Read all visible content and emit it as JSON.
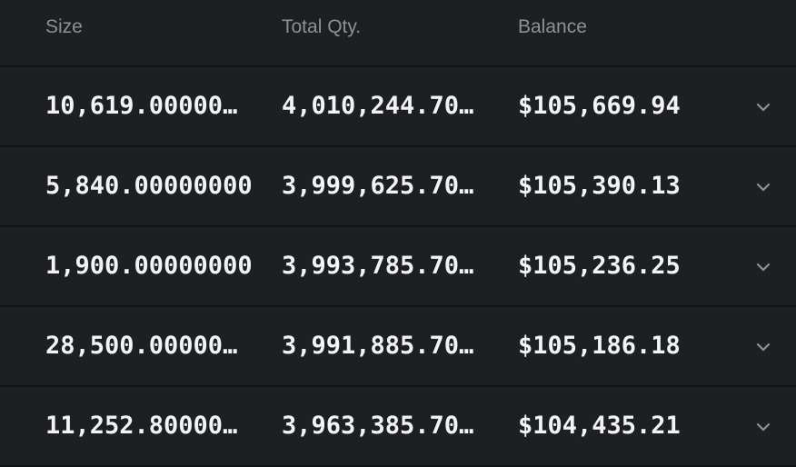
{
  "table": {
    "columns": [
      "Size",
      "Total Qty.",
      "Balance"
    ],
    "rows": [
      [
        "10,619.00000…",
        "4,010,244.70…",
        "$105,669.94"
      ],
      [
        "5,840.00000000",
        "3,999,625.70…",
        "$105,390.13"
      ],
      [
        "1,900.00000000",
        "3,993,785.70…",
        "$105,236.25"
      ],
      [
        "28,500.00000…",
        "3,991,885.70…",
        "$105,186.18"
      ],
      [
        "11,252.80000…",
        "3,963,385.70…",
        "$104,435.21"
      ]
    ]
  }
}
